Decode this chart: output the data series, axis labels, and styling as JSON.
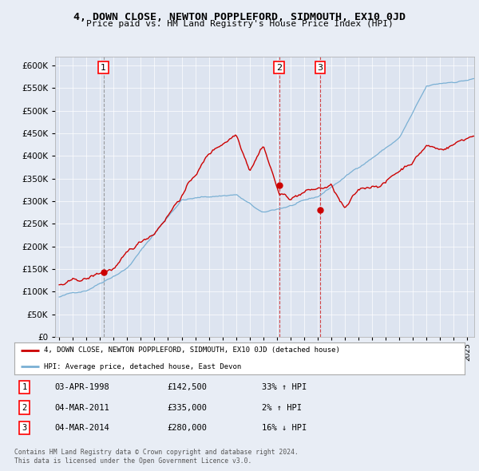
{
  "title": "4, DOWN CLOSE, NEWTON POPPLEFORD, SIDMOUTH, EX10 0JD",
  "subtitle": "Price paid vs. HM Land Registry's House Price Index (HPI)",
  "red_label": "4, DOWN CLOSE, NEWTON POPPLEFORD, SIDMOUTH, EX10 0JD (detached house)",
  "blue_label": "HPI: Average price, detached house, East Devon",
  "footer1": "Contains HM Land Registry data © Crown copyright and database right 2024.",
  "footer2": "This data is licensed under the Open Government Licence v3.0.",
  "sales": [
    {
      "num": 1,
      "date": "03-APR-1998",
      "price": 142500,
      "pct": "33%",
      "dir": "↑"
    },
    {
      "num": 2,
      "date": "04-MAR-2011",
      "price": 335000,
      "pct": "2%",
      "dir": "↑"
    },
    {
      "num": 3,
      "date": "04-MAR-2014",
      "price": 280000,
      "pct": "16%",
      "dir": "↓"
    }
  ],
  "sale_dates_decimal": [
    1998.25,
    2011.17,
    2014.17
  ],
  "background_color": "#e8edf5",
  "plot_bg": "#dde4f0",
  "red_color": "#cc0000",
  "blue_color": "#7ab0d4",
  "ylim": [
    0,
    620000
  ],
  "xlim_start": 1994.7,
  "xlim_end": 2025.5
}
